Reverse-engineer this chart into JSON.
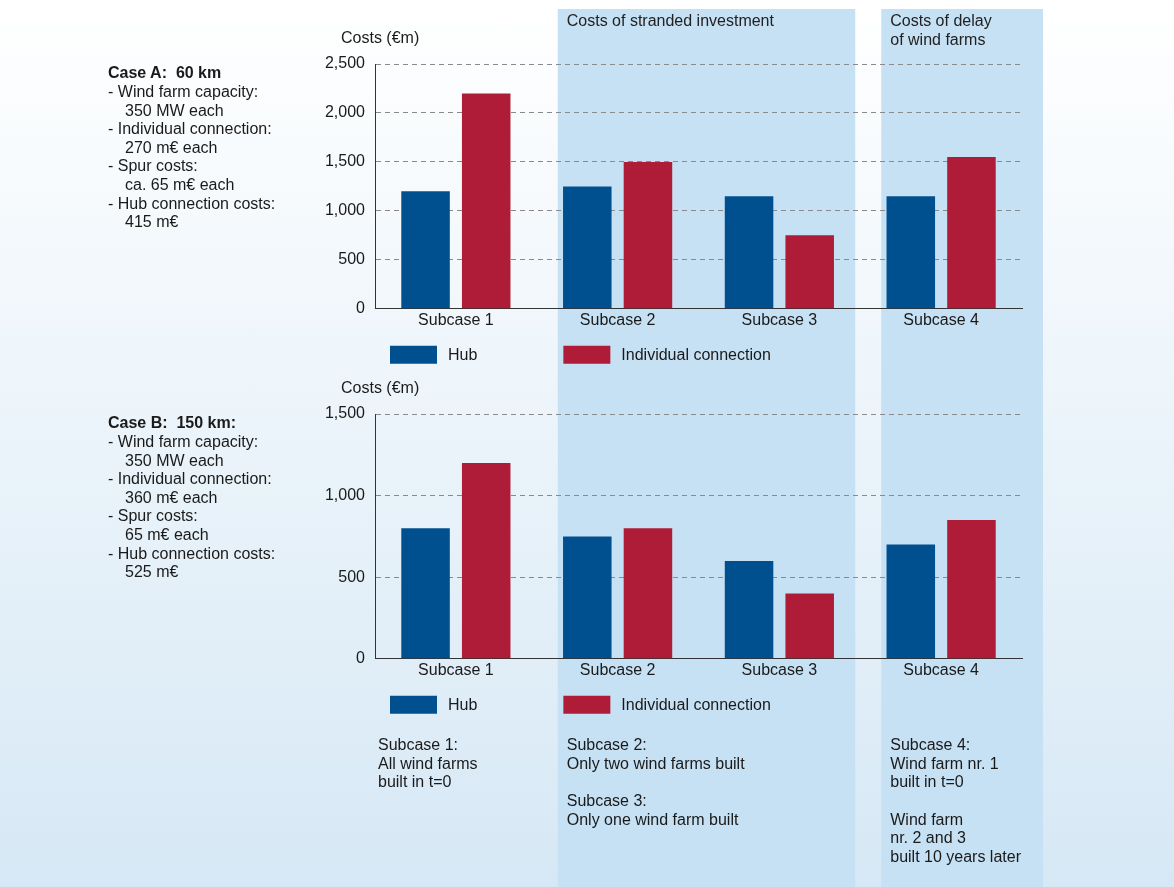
{
  "chart_data": [
    {
      "type": "bar",
      "ylabel": "Costs (€m)",
      "categories": [
        "Subcase 1",
        "Subcase 2",
        "Subcase 3",
        "Subcase 4"
      ],
      "series": [
        {
          "name": "Hub",
          "color": "#00508f",
          "values": [
            1200,
            1250,
            1150,
            1150
          ]
        },
        {
          "name": "Individual connection",
          "color": "#ae1c37",
          "values": [
            2200,
            1500,
            750,
            1550
          ]
        }
      ],
      "ylim": [
        0,
        2500
      ],
      "yticks": [
        {
          "value": 0,
          "label": "0"
        },
        {
          "value": 500,
          "label": "500"
        },
        {
          "value": 1000,
          "label": "1,000"
        },
        {
          "value": 1500,
          "label": "1,500"
        },
        {
          "value": 2000,
          "label": "2,000"
        },
        {
          "value": 2500,
          "label": "2,500"
        }
      ],
      "grid": "y",
      "legend": "bottom",
      "bands": [
        {
          "axis": "x",
          "from": "Subcase 2",
          "to": "Subcase 3",
          "label": "Costs of stranded investment",
          "color": "#c6e1f4"
        },
        {
          "axis": "x",
          "from": "Subcase 4",
          "to": "Subcase 4",
          "label": "Costs of delay\nof wind farms",
          "color": "#c6e1f4"
        }
      ],
      "annotations": [
        "Case A:  60 km",
        "- Wind farm capacity:\n350 MW each",
        "- Individual connection:\n270 m€ each",
        "- Spur costs:\nca. 65 m€ each",
        "- Hub connection costs:\n415 m€"
      ]
    },
    {
      "type": "bar",
      "ylabel": "Costs (€m)",
      "categories": [
        "Subcase 1",
        "Subcase 2",
        "Subcase 3",
        "Subcase 4"
      ],
      "series": [
        {
          "name": "Hub",
          "color": "#00508f",
          "values": [
            800,
            750,
            600,
            700
          ]
        },
        {
          "name": "Individual connection",
          "color": "#ae1c37",
          "values": [
            1200,
            800,
            400,
            850
          ]
        }
      ],
      "ylim": [
        0,
        1500
      ],
      "yticks": [
        {
          "value": 0,
          "label": "0"
        },
        {
          "value": 500,
          "label": "500"
        },
        {
          "value": 1000,
          "label": "1,000"
        },
        {
          "value": 1500,
          "label": "1,500"
        }
      ],
      "grid": "y",
      "legend": "bottom",
      "bands": [
        {
          "axis": "x",
          "from": "Subcase 2",
          "to": "Subcase 3",
          "color": "#c6e1f4"
        },
        {
          "axis": "x",
          "from": "Subcase 4",
          "to": "Subcase 4",
          "color": "#c6e1f4"
        }
      ],
      "annotations": [
        "Case B:  150 km:",
        "- Wind farm capacity:\n350 MW each",
        "- Individual connection:\n360 m€ each",
        "- Spur costs:\n65 m€ each",
        "- Hub connection costs:\n525 m€",
        "Subcase 1:\nAll wind farms\nbuilt in t=0",
        "Subcase 2:\nOnly two wind farms built\n\nSubcase 3:\nOnly one wind farm built",
        "Subcase 4:\nWind farm nr. 1\nbuilt in t=0\n\nWind farm\nnr. 2 and 3\nbuilt 10 years later"
      ]
    }
  ]
}
